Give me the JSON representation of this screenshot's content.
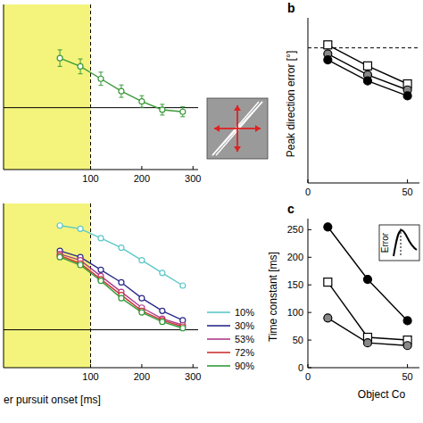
{
  "chart_data": [
    {
      "type": "line",
      "x": [
        40,
        80,
        120,
        160,
        200,
        240,
        280
      ],
      "series": [
        {
          "color": "#3a9a3a",
          "marker": "open-circle",
          "values": [
            12,
            10,
            7,
            4,
            1.5,
            -0.5,
            -1
          ],
          "errors": [
            2,
            1.8,
            1.6,
            1.5,
            1.4,
            1.3,
            1.2
          ]
        }
      ],
      "xlim": [
        -70,
        310
      ],
      "xticks": [
        100,
        200,
        300
      ],
      "ylim": [
        -15,
        25
      ],
      "tick_labels": "x",
      "shade": [
        -70,
        100
      ],
      "vline": 100,
      "hline": 0
    },
    {
      "type": "line",
      "x_label": "er pursuit onset [ms]",
      "x": [
        40,
        80,
        120,
        160,
        200,
        240,
        280
      ],
      "series": [
        {
          "name": "10%",
          "color": "#5ec8c8",
          "marker": "open-circle",
          "values": [
            33,
            32,
            29,
            26,
            22,
            18,
            14
          ]
        },
        {
          "name": "30%",
          "color": "#2a2a8a",
          "marker": "open-circle",
          "values": [
            25,
            23,
            19,
            15,
            10,
            6,
            3
          ]
        },
        {
          "name": "53%",
          "color": "#b03a8a",
          "marker": "open-circle",
          "values": [
            24,
            22,
            17,
            12,
            7,
            3.5,
            1.5
          ]
        },
        {
          "name": "72%",
          "color": "#cc3333",
          "marker": "open-circle",
          "values": [
            23.5,
            21,
            16,
            11,
            6,
            3,
            1
          ]
        },
        {
          "name": "90%",
          "color": "#33993a",
          "marker": "open-circle",
          "values": [
            23,
            20.5,
            15.5,
            10,
            5.5,
            2.5,
            0.5
          ]
        }
      ],
      "xlim": [
        -70,
        310
      ],
      "xticks": [
        100,
        200,
        300
      ],
      "ylim": [
        -12,
        40
      ],
      "tick_labels": "x",
      "shade": [
        -70,
        100
      ],
      "vline": 100,
      "hline": 0,
      "legend": "right"
    },
    {
      "type": "line",
      "panel_label": "b",
      "y_label": "Peak direction error [°]",
      "x": [
        10,
        30,
        50
      ],
      "series": [
        {
          "color": "#ffffff",
          "marker": "square",
          "values": [
            46,
            39,
            33
          ]
        },
        {
          "color": "#888888",
          "marker": "circle",
          "values": [
            43,
            36,
            31
          ]
        },
        {
          "color": "#000000",
          "marker": "circle",
          "values": [
            41,
            34,
            29
          ]
        }
      ],
      "xlim": [
        0,
        56
      ],
      "xticks": [
        0,
        50
      ],
      "ylim": [
        0,
        55
      ],
      "tick_labels": "x",
      "hline": 45
    },
    {
      "type": "line",
      "panel_label": "c",
      "y_label": "Time constant [ms]",
      "x_label": "Object Co",
      "x": [
        10,
        30,
        50
      ],
      "series": [
        {
          "color": "#000000",
          "marker": "circle",
          "values": [
            255,
            160,
            85
          ]
        },
        {
          "color": "#ffffff",
          "marker": "square",
          "values": [
            155,
            55,
            50
          ]
        },
        {
          "color": "#888888",
          "marker": "circle",
          "values": [
            90,
            45,
            40
          ]
        }
      ],
      "xlim": [
        0,
        56
      ],
      "xticks": [
        0,
        50
      ],
      "ylim": [
        0,
        270
      ],
      "yticks": [
        0,
        50,
        100,
        150,
        200,
        250
      ],
      "inset_label": "Error"
    }
  ]
}
